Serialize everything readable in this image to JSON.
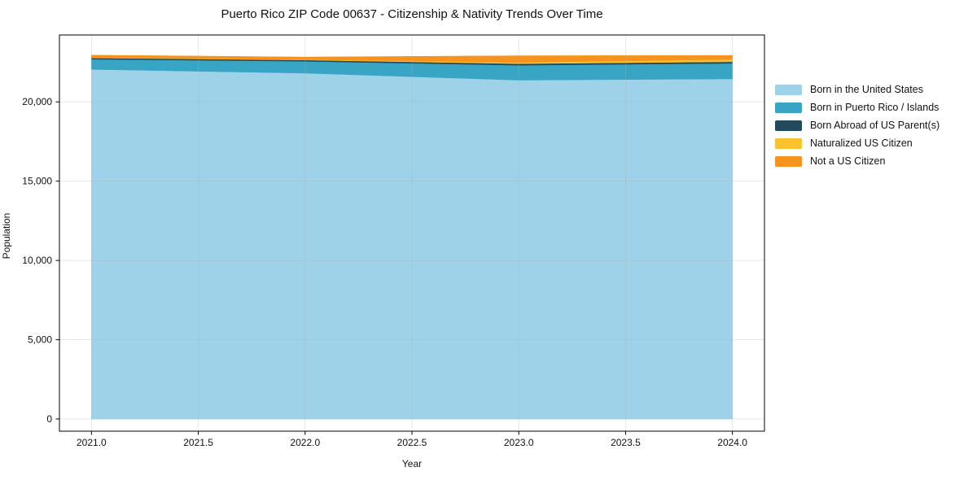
{
  "title": "Puerto Rico ZIP Code 00637 - Citizenship & Nativity Trends Over Time",
  "chart_data": {
    "type": "area",
    "stacked": true,
    "title": "Puerto Rico ZIP Code 00637 - Citizenship & Nativity Trends Over Time",
    "xlabel": "Year",
    "ylabel": "Population",
    "x": [
      2021,
      2022,
      2023,
      2024
    ],
    "series": [
      {
        "name": "Born in the United States",
        "color": "#9ed2e8",
        "values": [
          22050,
          21810,
          21370,
          21450
        ]
      },
      {
        "name": "Born in Puerto Rico / Islands",
        "color": "#38a5c5",
        "values": [
          640,
          750,
          940,
          980
        ]
      },
      {
        "name": "Born Abroad of US Parent(s)",
        "color": "#234a5c",
        "values": [
          80,
          80,
          100,
          100
        ]
      },
      {
        "name": "Naturalized US Citizen",
        "color": "#fcc22e",
        "values": [
          20,
          30,
          80,
          150
        ]
      },
      {
        "name": "Not a US Citizen",
        "color": "#f6921e",
        "values": [
          160,
          160,
          420,
          250
        ]
      }
    ],
    "xlim": [
      2020.85,
      2024.15
    ],
    "ylim": [
      -770,
      24220
    ],
    "x_ticks": {
      "values": [
        2021.0,
        2021.5,
        2022.0,
        2022.5,
        2023.0,
        2023.5,
        2024.0
      ],
      "labels": [
        "2021.0",
        "2021.5",
        "2022.0",
        "2022.5",
        "2023.0",
        "2023.5",
        "2024.0"
      ]
    },
    "y_ticks": {
      "values": [
        0,
        5000,
        10000,
        15000,
        20000
      ],
      "labels": [
        "0",
        "5,000",
        "10,000",
        "15,000",
        "20,000"
      ]
    },
    "grid": true,
    "grid_color": "#b0b0b0",
    "grid_opacity": 0.3,
    "spine_color": "#000000",
    "legend_position": "right-outside"
  }
}
